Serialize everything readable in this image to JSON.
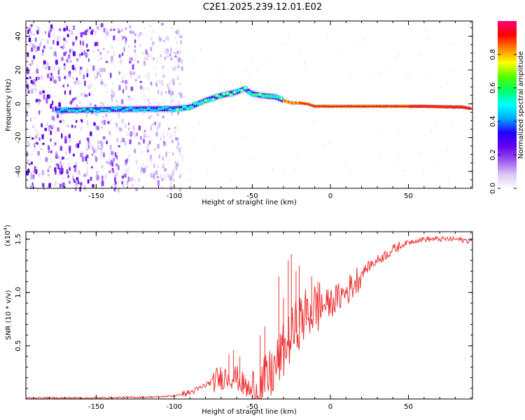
{
  "title": "C2E1.2025.239.12.01.E02",
  "colors": {
    "snr_line": "#ee3333",
    "axis": "#000000",
    "colormap": [
      "#ffffff",
      "#d8c8f4",
      "#9955f0",
      "#6600ee",
      "#2200ff",
      "#00aaff",
      "#00ffff",
      "#00ff66",
      "#55ff00",
      "#ffff00",
      "#ff8800",
      "#ff0000",
      "#ff0077"
    ]
  },
  "chart_data": [
    {
      "type": "heatmap",
      "name": "spectrogram",
      "xlabel": "Height of straight line (km)",
      "ylabel": "Frequency (Hz)",
      "xlim": [
        -195,
        91
      ],
      "ylim": [
        -50,
        49
      ],
      "xticks": [
        -150,
        -100,
        -50,
        0,
        50
      ],
      "xtick_labels": [
        "-150",
        "-100",
        "-50",
        "0",
        "50"
      ],
      "yticks": [
        -40,
        -20,
        0,
        20,
        40
      ],
      "ytick_labels": [
        "-40",
        "-20",
        "0",
        "20",
        "40"
      ],
      "ridge": {
        "x": [
          -175,
          -150,
          -120,
          -100,
          -90,
          -80,
          -70,
          -60,
          -55,
          -50,
          -45,
          -40,
          -35,
          -30,
          -25,
          -20,
          -15,
          -10,
          0,
          10,
          30,
          60,
          85,
          91
        ],
        "y": [
          -4,
          -3.5,
          -3,
          -3,
          -2,
          2,
          5,
          7,
          9,
          6,
          5,
          4.5,
          4,
          2,
          0.5,
          0.5,
          0,
          -1.5,
          -1.5,
          -1.5,
          -1.5,
          -1.5,
          -2,
          -3
        ]
      },
      "colorbar": {
        "label": "Normalized spectral amplitude",
        "range": [
          0,
          1
        ],
        "ticks": [
          0.0,
          0.2,
          0.4,
          0.6,
          0.8
        ],
        "tick_labels": [
          "0.0",
          "0.2",
          "0.4",
          "0.6",
          "0.8"
        ]
      }
    },
    {
      "type": "line",
      "name": "snr",
      "xlabel": "Height of straight line (km)",
      "ylabel": "SNR (10 * v/v)",
      "yscale_label": "(x10",
      "yscale_exp": "4",
      "yscale_close": ")",
      "xlim": [
        -195,
        91
      ],
      "ylim": [
        0,
        1.57
      ],
      "xticks": [
        -150,
        -100,
        -50,
        0,
        50
      ],
      "xtick_labels": [
        "-150",
        "-100",
        "-50",
        "0",
        "50"
      ],
      "yticks": [
        0.5,
        1.0,
        1.5
      ],
      "ytick_labels": [
        "0.5",
        "1.0",
        "1.5"
      ],
      "series": [
        {
          "name": "SNR",
          "x": [
            -195,
            -150,
            -130,
            -110,
            -100,
            -90,
            -85,
            -80,
            -75,
            -70,
            -65,
            -60,
            -55,
            -50,
            -45,
            -40,
            -35,
            -30,
            -25,
            -20,
            -15,
            -10,
            -5,
            0,
            5,
            10,
            15,
            20,
            25,
            30,
            35,
            40,
            45,
            50,
            55,
            60,
            70,
            80,
            91
          ],
          "y": [
            0.01,
            0.01,
            0.015,
            0.02,
            0.03,
            0.06,
            0.09,
            0.13,
            0.17,
            0.2,
            0.22,
            0.2,
            0.12,
            0.06,
            0.1,
            0.18,
            0.3,
            0.45,
            0.6,
            0.72,
            0.8,
            0.85,
            0.88,
            0.9,
            0.95,
            1.0,
            1.08,
            1.18,
            1.25,
            1.3,
            1.35,
            1.4,
            1.44,
            1.47,
            1.49,
            1.5,
            1.5,
            1.5,
            1.48
          ]
        }
      ],
      "spikes": {
        "x": [
          -65,
          -62,
          -58,
          -45,
          -42,
          -33,
          -30,
          -27,
          -25,
          -22,
          -20,
          -12,
          -8
        ],
        "y": [
          0.42,
          0.46,
          0.4,
          0.6,
          0.68,
          1.15,
          0.95,
          1.3,
          1.36,
          1.2,
          1.25,
          1.15,
          1.1
        ]
      }
    }
  ]
}
